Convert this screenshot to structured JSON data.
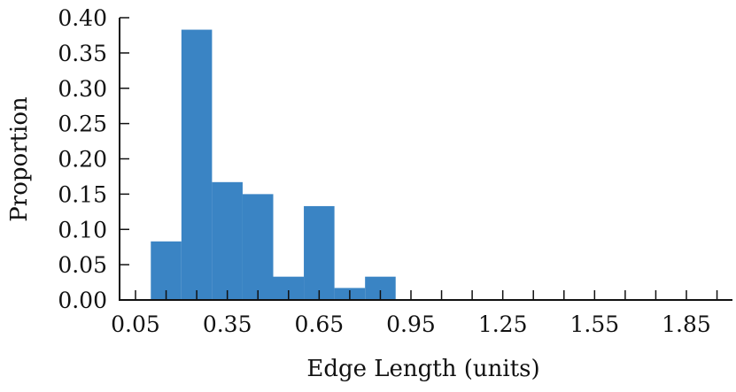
{
  "chart_data": {
    "type": "bar",
    "xlabel": "Edge Length (units)",
    "ylabel": "Proportion",
    "xlim": [
      0.03,
      2.0
    ],
    "ylim": [
      0.0,
      0.4
    ],
    "bin_width": 0.1,
    "bins": [
      {
        "start": 0.1,
        "end": 0.2,
        "value": 0.083
      },
      {
        "start": 0.2,
        "end": 0.3,
        "value": 0.383
      },
      {
        "start": 0.3,
        "end": 0.4,
        "value": 0.167
      },
      {
        "start": 0.4,
        "end": 0.5,
        "value": 0.15
      },
      {
        "start": 0.5,
        "end": 0.6,
        "value": 0.033
      },
      {
        "start": 0.6,
        "end": 0.7,
        "value": 0.133
      },
      {
        "start": 0.7,
        "end": 0.8,
        "value": 0.017
      },
      {
        "start": 0.8,
        "end": 0.9,
        "value": 0.033
      }
    ],
    "x_ticks": [
      0.05,
      0.35,
      0.65,
      0.95,
      1.25,
      1.55,
      1.85
    ],
    "x_tick_labels": [
      "0.05",
      "0.35",
      "0.65",
      "0.95",
      "1.25",
      "1.55",
      "1.85"
    ],
    "x_minor_ticks": [
      0.05,
      0.15,
      0.25,
      0.35,
      0.45,
      0.55,
      0.65,
      0.75,
      0.85,
      0.95,
      1.05,
      1.15,
      1.25,
      1.35,
      1.45,
      1.55,
      1.65,
      1.75,
      1.85,
      1.95
    ],
    "y_ticks": [
      0.0,
      0.05,
      0.1,
      0.15,
      0.2,
      0.25,
      0.3,
      0.35,
      0.4
    ],
    "y_tick_labels": [
      "0.00",
      "0.05",
      "0.10",
      "0.15",
      "0.20",
      "0.25",
      "0.30",
      "0.35",
      "0.40"
    ],
    "bar_color": "#3a84c4",
    "grid": false,
    "legend": "none"
  }
}
